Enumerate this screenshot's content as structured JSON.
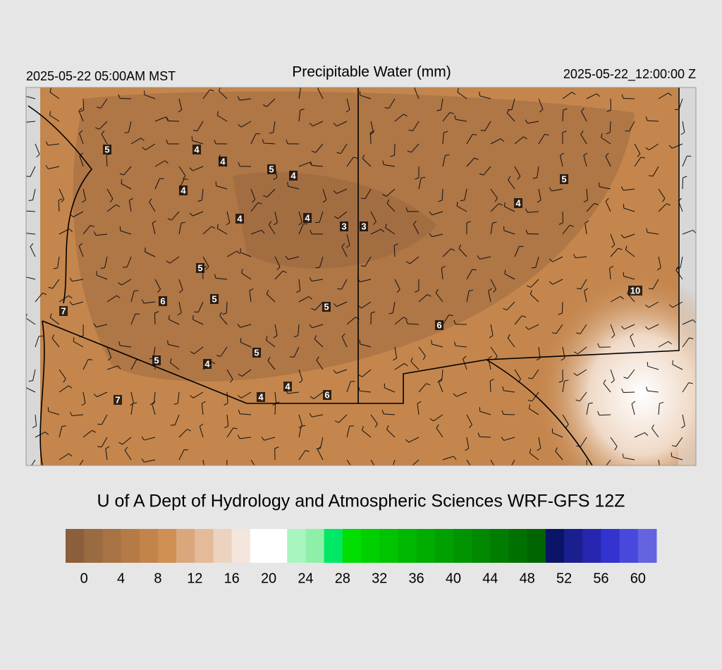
{
  "header": {
    "left": "2025-05-22 05:00AM MST",
    "title": "Precipitable Water (mm)",
    "right": "2025-05-22_12:00:00 Z"
  },
  "footer": "U of A Dept of Hydrology and Atmospheric Sciences WRF-GFS 12Z",
  "colorbar": {
    "range": [
      -2,
      62
    ],
    "ticks": [
      0,
      4,
      8,
      12,
      16,
      20,
      24,
      28,
      32,
      36,
      40,
      44,
      48,
      52,
      56,
      60
    ],
    "colors": [
      "#8b5e3c",
      "#9a6a40",
      "#a87244",
      "#b57b47",
      "#c2844a",
      "#cf8f53",
      "#d9a77b",
      "#e3bb99",
      "#ebd3bf",
      "#f4e6dc",
      "#ffffff",
      "#ffffff",
      "#a8f5c0",
      "#8ef0a8",
      "#00e865",
      "#00dd00",
      "#00d000",
      "#00c400",
      "#00b800",
      "#00ac00",
      "#00a000",
      "#009400",
      "#008800",
      "#007c00",
      "#007000",
      "#006400",
      "#0b1466",
      "#1a1f8f",
      "#2626b0",
      "#3333d0",
      "#4848dd",
      "#6464e0"
    ]
  },
  "stations": [
    5,
    4,
    4,
    5,
    4,
    4,
    4,
    4,
    3,
    3,
    4,
    5,
    5,
    5,
    6,
    5,
    10,
    7,
    6,
    5,
    4,
    5,
    4,
    4,
    6,
    7
  ]
}
